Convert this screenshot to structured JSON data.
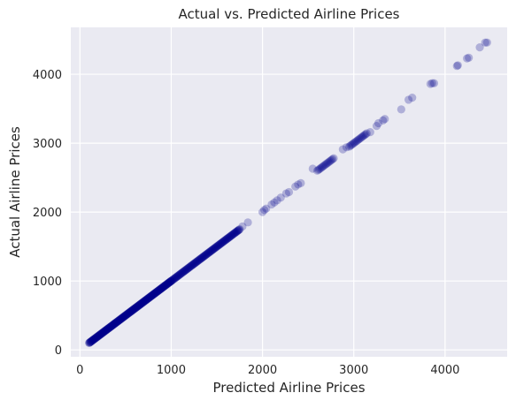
{
  "chart_data": {
    "type": "scatter",
    "title": "Actual vs. Predicted Airline Prices",
    "xlabel": "Predicted Airline Prices",
    "ylabel": "Actual Airline Prices",
    "xlim": [
      -100,
      4680
    ],
    "ylim": [
      -100,
      4680
    ],
    "x_ticks": [
      0,
      1000,
      2000,
      3000,
      4000
    ],
    "y_ticks": [
      0,
      1000,
      2000,
      3000,
      4000
    ],
    "x_tick_labels": [
      "0",
      "1000",
      "2000",
      "3000",
      "4000"
    ],
    "y_tick_labels": [
      "0",
      "1000",
      "2000",
      "3000",
      "4000"
    ],
    "grid": true,
    "background_color": "#eaeaf2",
    "grid_color": "#ffffff",
    "marker_color": "#00008b",
    "marker_alpha": 0.25,
    "dense_segments": [
      {
        "from": 100,
        "to": 1000,
        "step": 4
      },
      {
        "from": 1000,
        "to": 1750,
        "step": 6
      },
      {
        "from": 2600,
        "to": 2780,
        "step": 12
      },
      {
        "from": 2950,
        "to": 3150,
        "step": 12
      }
    ],
    "points": [
      [
        1780,
        1790
      ],
      [
        1840,
        1850
      ],
      [
        2000,
        2000
      ],
      [
        2020,
        2030
      ],
      [
        2040,
        2050
      ],
      [
        2100,
        2110
      ],
      [
        2130,
        2140
      ],
      [
        2160,
        2170
      ],
      [
        2200,
        2210
      ],
      [
        2260,
        2270
      ],
      [
        2290,
        2290
      ],
      [
        2360,
        2370
      ],
      [
        2390,
        2400
      ],
      [
        2420,
        2420
      ],
      [
        2550,
        2630
      ],
      [
        2880,
        2910
      ],
      [
        2920,
        2940
      ],
      [
        3180,
        3160
      ],
      [
        3250,
        3250
      ],
      [
        3270,
        3290
      ],
      [
        3320,
        3330
      ],
      [
        3340,
        3350
      ],
      [
        3520,
        3490
      ],
      [
        3600,
        3630
      ],
      [
        3640,
        3660
      ],
      [
        3840,
        3860
      ],
      [
        3860,
        3870
      ],
      [
        3880,
        3870
      ],
      [
        4130,
        4120
      ],
      [
        4140,
        4130
      ],
      [
        4240,
        4230
      ],
      [
        4260,
        4240
      ],
      [
        4380,
        4390
      ],
      [
        4440,
        4460
      ],
      [
        4460,
        4460
      ]
    ]
  }
}
